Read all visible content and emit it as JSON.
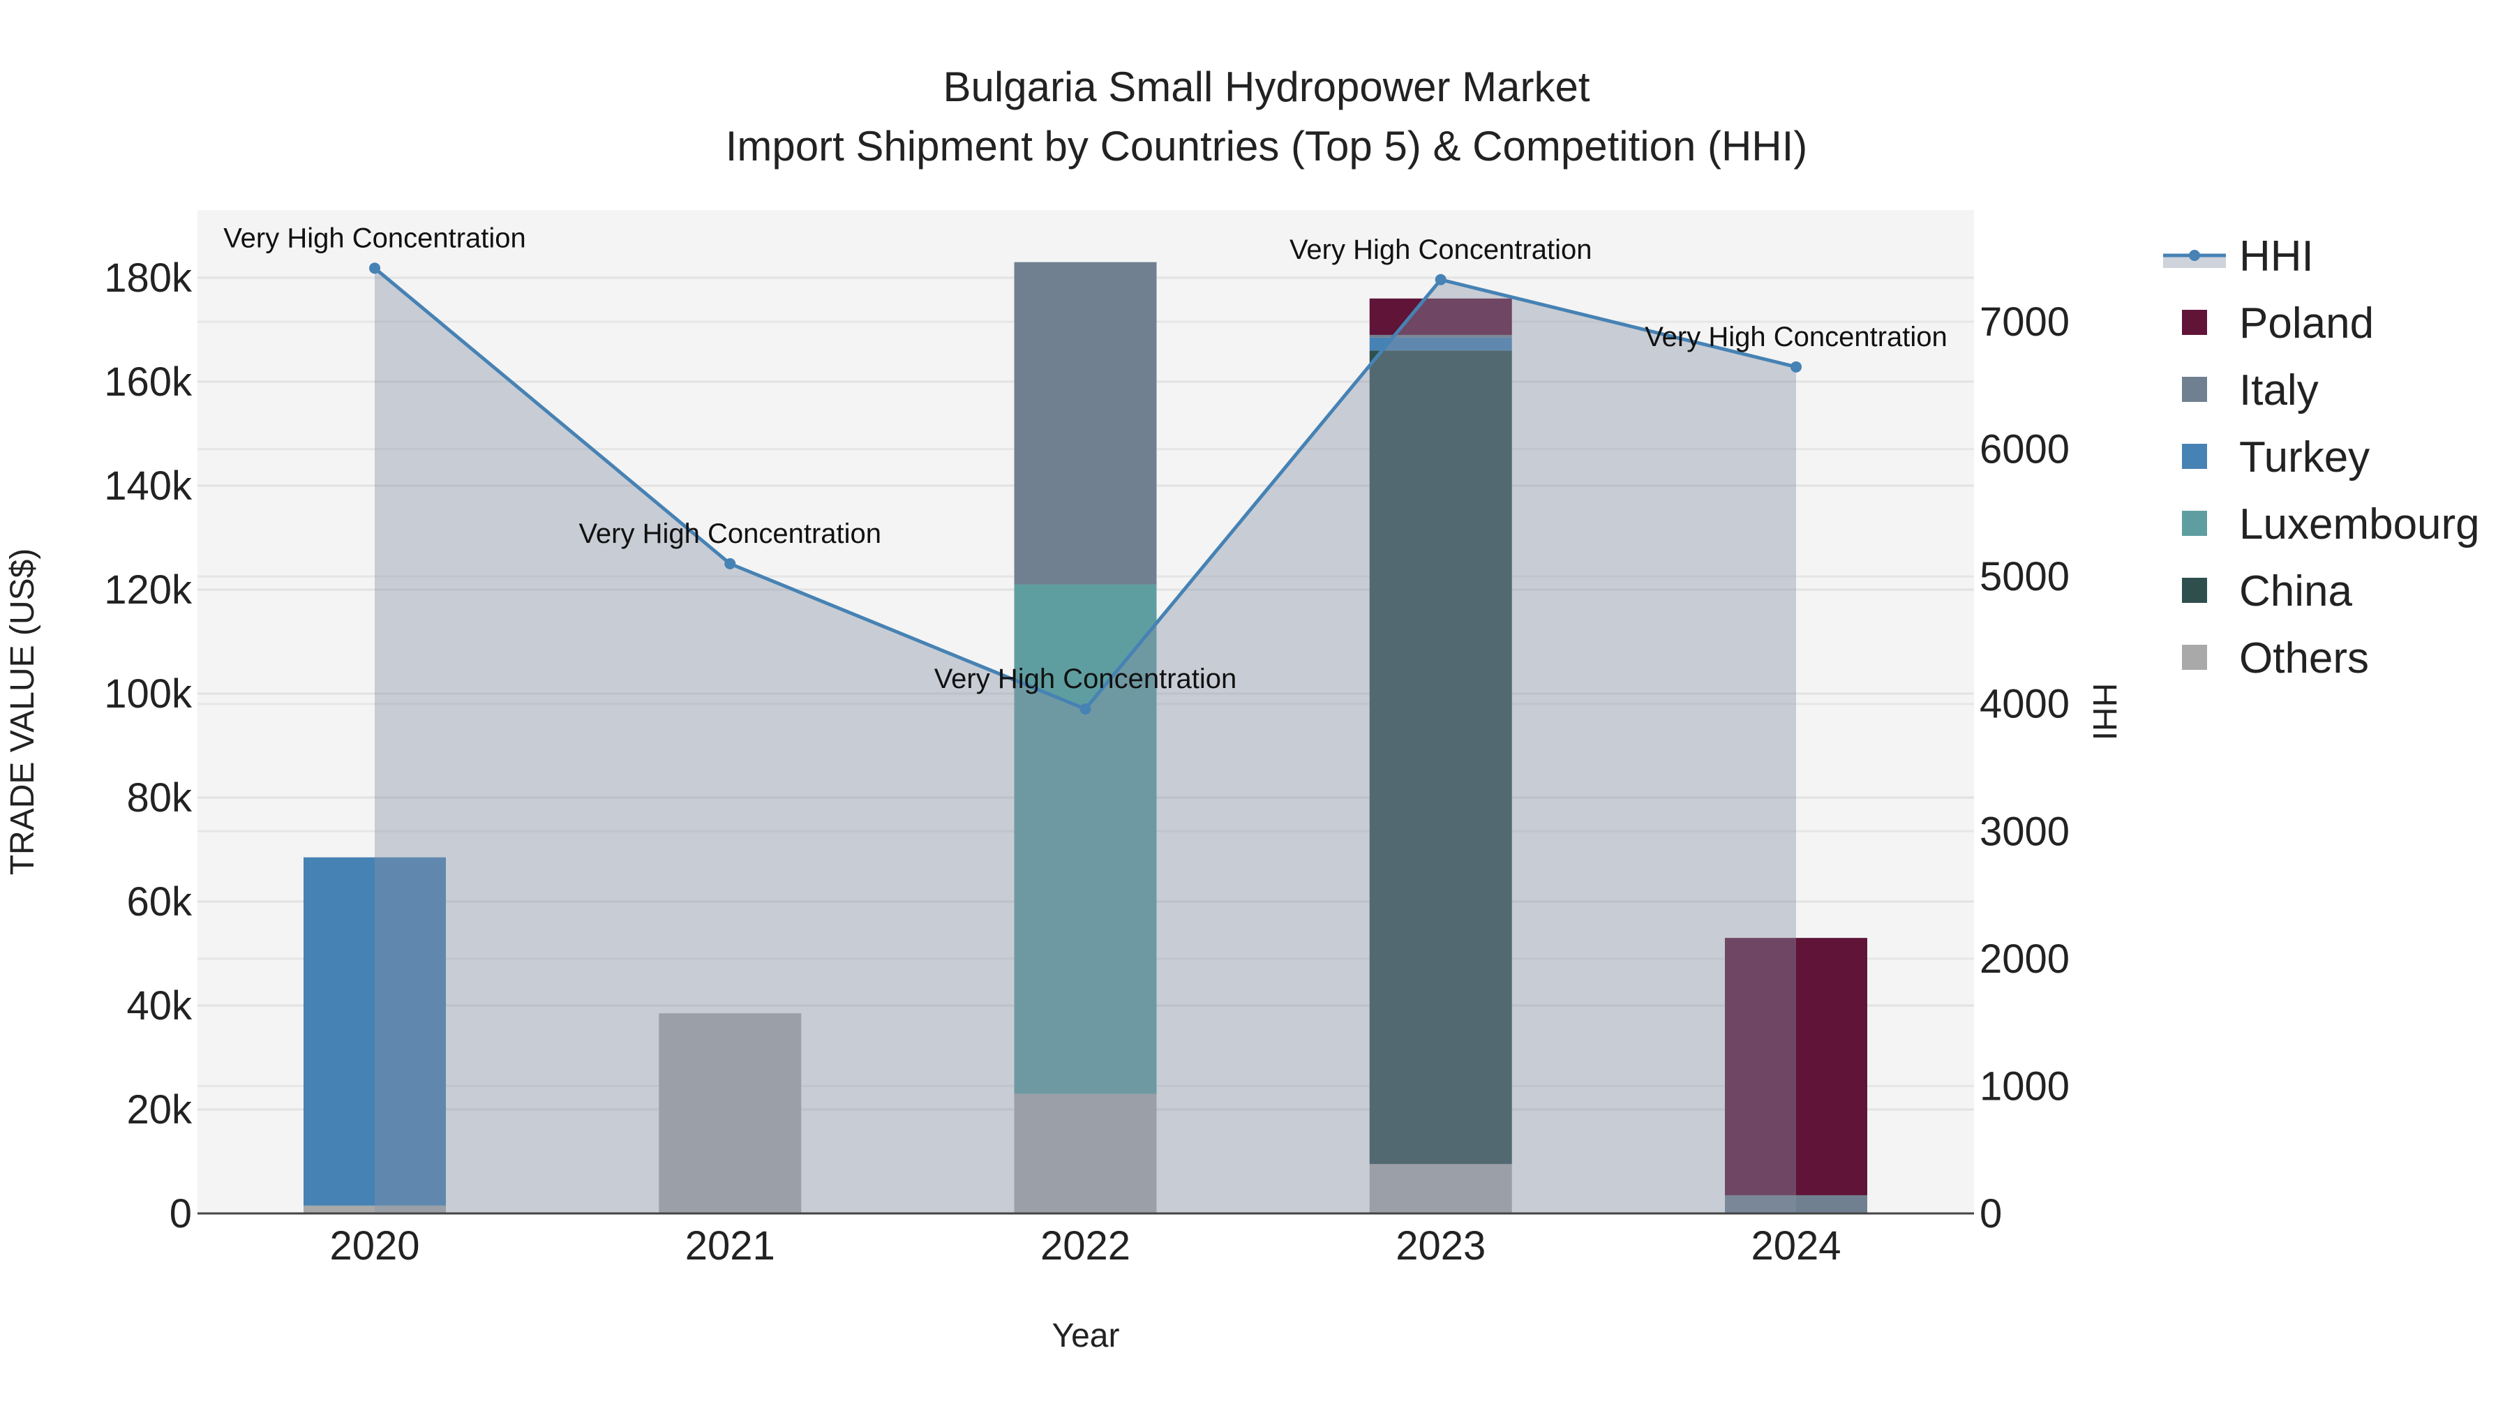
{
  "chart_data": {
    "type": "bar",
    "title": "Bulgaria Small Hydropower Market",
    "subtitle": "Import Shipment by Countries (Top 5) & Competition (HHI)",
    "xlabel": "Year",
    "ylabel": "TRADE VALUE (US$)",
    "y2label": "HHI",
    "categories": [
      "2020",
      "2021",
      "2022",
      "2023",
      "2024"
    ],
    "ylim": [
      0,
      190000
    ],
    "y2lim": [
      0,
      7700
    ],
    "yticks": [
      0,
      20000,
      40000,
      60000,
      80000,
      100000,
      120000,
      140000,
      160000,
      180000
    ],
    "ytick_labels": [
      "0",
      "20k",
      "40k",
      "60k",
      "80k",
      "100k",
      "120k",
      "140k",
      "160k",
      "180k"
    ],
    "y2ticks": [
      0,
      1000,
      2000,
      3000,
      4000,
      5000,
      6000,
      7000
    ],
    "y2tick_labels": [
      "0",
      "1000",
      "2000",
      "3000",
      "4000",
      "5000",
      "6000",
      "7000"
    ],
    "stacked": true,
    "series": [
      {
        "name": "Others",
        "color": "#a9a9a9",
        "values": [
          1500,
          38500,
          23000,
          9500,
          0
        ]
      },
      {
        "name": "China",
        "color": "#2f4f4f",
        "values": [
          0,
          0,
          0,
          156500,
          0
        ]
      },
      {
        "name": "Luxembourg",
        "color": "#5f9ea0",
        "values": [
          0,
          0,
          98000,
          0,
          0
        ]
      },
      {
        "name": "Turkey",
        "color": "#4682b4",
        "values": [
          67000,
          0,
          0,
          2500,
          0
        ]
      },
      {
        "name": "Italy",
        "color": "#708090",
        "values": [
          0,
          0,
          62000,
          500,
          3500
        ]
      },
      {
        "name": "Poland",
        "color": "#601438",
        "values": [
          0,
          0,
          0,
          7000,
          49500
        ]
      }
    ],
    "line": {
      "name": "HHI",
      "axis": "right",
      "color": "#4682b4",
      "values": [
        7420,
        5100,
        3960,
        7330,
        6645
      ],
      "annotations": [
        "Very High Concentration",
        "Very High Concentration",
        "Very High Concentration",
        "Very High Concentration",
        "Very High Concentration"
      ]
    },
    "legend": [
      "HHI",
      "Poland",
      "Italy",
      "Turkey",
      "Luxembourg",
      "China",
      "Others"
    ],
    "legend_position": "right",
    "grid": true
  }
}
